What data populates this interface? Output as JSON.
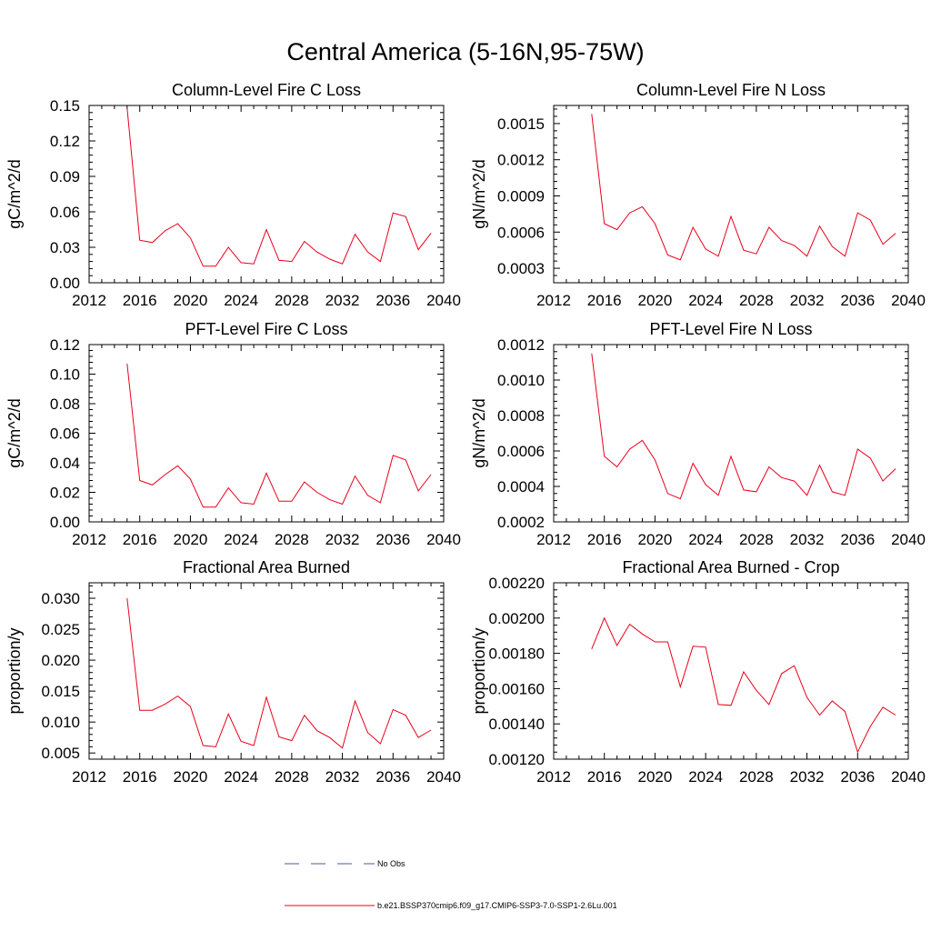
{
  "title": "Central America (5-16N,95-75W)",
  "legend": [
    {
      "label": "No Obs",
      "color": "#4a5aa0",
      "style": "dashed"
    },
    {
      "label": "b.e21.BSSP370cmip6.f09_g17.CMIP6-SSP3-7.0-SSP1-2.6Lu.001",
      "color": "#e8001c",
      "style": "solid"
    }
  ],
  "chart_data": [
    {
      "type": "line",
      "title": "Column-Level Fire C Loss",
      "ylabel": "gC/m^2/d",
      "xlim": [
        2012,
        2040
      ],
      "ylim": [
        0,
        0.15
      ],
      "xticks": [
        2012,
        2016,
        2020,
        2024,
        2028,
        2032,
        2036,
        2040
      ],
      "xtick_labels": [
        "2012",
        "2016",
        "2020",
        "2024",
        "2028",
        "2032",
        "2036",
        "2040"
      ],
      "yticks": [
        0,
        0.03,
        0.06,
        0.09,
        0.12,
        0.15
      ],
      "ytick_labels": [
        "0.00",
        "0.03",
        "0.06",
        "0.09",
        "0.12",
        "0.15"
      ],
      "x": [
        2015,
        2016,
        2017,
        2018,
        2019,
        2020,
        2021,
        2022,
        2023,
        2024,
        2025,
        2026,
        2027,
        2028,
        2029,
        2030,
        2031,
        2032,
        2033,
        2034,
        2035,
        2036,
        2037,
        2038,
        2039
      ],
      "series": [
        {
          "values": [
            0.148,
            0.036,
            0.034,
            0.044,
            0.05,
            0.038,
            0.014,
            0.014,
            0.03,
            0.017,
            0.016,
            0.045,
            0.019,
            0.018,
            0.035,
            0.026,
            0.02,
            0.016,
            0.041,
            0.026,
            0.018,
            0.059,
            0.056,
            0.028,
            0.042
          ],
          "color": "#e8001c"
        }
      ]
    },
    {
      "type": "line",
      "title": "Column-Level Fire N Loss",
      "ylabel": "gN/m^2/d",
      "xlim": [
        2012,
        2040
      ],
      "ylim": [
        0.00018,
        0.00165
      ],
      "xticks": [
        2012,
        2016,
        2020,
        2024,
        2028,
        2032,
        2036,
        2040
      ],
      "xtick_labels": [
        "2012",
        "2016",
        "2020",
        "2024",
        "2028",
        "2032",
        "2036",
        "2040"
      ],
      "yticks": [
        0.0003,
        0.0006,
        0.0009,
        0.0012,
        0.0015
      ],
      "ytick_labels": [
        "0.0003",
        "0.0006",
        "0.0009",
        "0.0012",
        "0.0015"
      ],
      "x": [
        2015,
        2016,
        2017,
        2018,
        2019,
        2020,
        2021,
        2022,
        2023,
        2024,
        2025,
        2026,
        2027,
        2028,
        2029,
        2030,
        2031,
        2032,
        2033,
        2034,
        2035,
        2036,
        2037,
        2038,
        2039
      ],
      "series": [
        {
          "values": [
            0.00158,
            0.00067,
            0.00062,
            0.00076,
            0.00081,
            0.00067,
            0.00041,
            0.00037,
            0.00064,
            0.00046,
            0.0004,
            0.00073,
            0.00045,
            0.00042,
            0.00064,
            0.00053,
            0.00049,
            0.0004,
            0.00065,
            0.00048,
            0.0004,
            0.00076,
            0.0007,
            0.0005,
            0.00059
          ],
          "color": "#e8001c"
        }
      ]
    },
    {
      "type": "line",
      "title": "PFT-Level Fire C Loss",
      "ylabel": "gC/m^2/d",
      "xlim": [
        2012,
        2040
      ],
      "ylim": [
        0,
        0.12
      ],
      "xticks": [
        2012,
        2016,
        2020,
        2024,
        2028,
        2032,
        2036,
        2040
      ],
      "xtick_labels": [
        "2012",
        "2016",
        "2020",
        "2024",
        "2028",
        "2032",
        "2036",
        "2040"
      ],
      "yticks": [
        0,
        0.02,
        0.04,
        0.06,
        0.08,
        0.1,
        0.12
      ],
      "ytick_labels": [
        "0.00",
        "0.02",
        "0.04",
        "0.06",
        "0.08",
        "0.10",
        "0.12"
      ],
      "x": [
        2015,
        2016,
        2017,
        2018,
        2019,
        2020,
        2021,
        2022,
        2023,
        2024,
        2025,
        2026,
        2027,
        2028,
        2029,
        2030,
        2031,
        2032,
        2033,
        2034,
        2035,
        2036,
        2037,
        2038,
        2039
      ],
      "series": [
        {
          "values": [
            0.107,
            0.028,
            0.025,
            0.032,
            0.038,
            0.029,
            0.01,
            0.01,
            0.023,
            0.013,
            0.012,
            0.033,
            0.014,
            0.014,
            0.027,
            0.02,
            0.015,
            0.012,
            0.031,
            0.018,
            0.013,
            0.045,
            0.042,
            0.021,
            0.032
          ],
          "color": "#e8001c"
        }
      ]
    },
    {
      "type": "line",
      "title": "PFT-Level Fire N Loss",
      "ylabel": "gN/m^2/d",
      "xlim": [
        2012,
        2040
      ],
      "ylim": [
        0.0002,
        0.0012
      ],
      "xticks": [
        2012,
        2016,
        2020,
        2024,
        2028,
        2032,
        2036,
        2040
      ],
      "xtick_labels": [
        "2012",
        "2016",
        "2020",
        "2024",
        "2028",
        "2032",
        "2036",
        "2040"
      ],
      "yticks": [
        0.0002,
        0.0004,
        0.0006,
        0.0008,
        0.001,
        0.0012
      ],
      "ytick_labels": [
        "0.0002",
        "0.0004",
        "0.0006",
        "0.0008",
        "0.0010",
        "0.0012"
      ],
      "x": [
        2015,
        2016,
        2017,
        2018,
        2019,
        2020,
        2021,
        2022,
        2023,
        2024,
        2025,
        2026,
        2027,
        2028,
        2029,
        2030,
        2031,
        2032,
        2033,
        2034,
        2035,
        2036,
        2037,
        2038,
        2039
      ],
      "series": [
        {
          "values": [
            0.00115,
            0.00057,
            0.00051,
            0.00061,
            0.00066,
            0.00055,
            0.00036,
            0.00033,
            0.00053,
            0.00041,
            0.00035,
            0.00057,
            0.00038,
            0.00037,
            0.00051,
            0.00045,
            0.00043,
            0.00035,
            0.00052,
            0.00037,
            0.00035,
            0.00061,
            0.00056,
            0.00043,
            0.0005
          ],
          "color": "#e8001c"
        }
      ]
    },
    {
      "type": "line",
      "title": "Fractional Area Burned",
      "ylabel": "proportion/y",
      "xlim": [
        2012,
        2040
      ],
      "ylim": [
        0.004,
        0.0325
      ],
      "xticks": [
        2012,
        2016,
        2020,
        2024,
        2028,
        2032,
        2036,
        2040
      ],
      "xtick_labels": [
        "2012",
        "2016",
        "2020",
        "2024",
        "2028",
        "2032",
        "2036",
        "2040"
      ],
      "yticks": [
        0.005,
        0.01,
        0.015,
        0.02,
        0.025,
        0.03
      ],
      "ytick_labels": [
        "0.005",
        "0.010",
        "0.015",
        "0.020",
        "0.025",
        "0.030"
      ],
      "x": [
        2015,
        2016,
        2017,
        2018,
        2019,
        2020,
        2021,
        2022,
        2023,
        2024,
        2025,
        2026,
        2027,
        2028,
        2029,
        2030,
        2031,
        2032,
        2033,
        2034,
        2035,
        2036,
        2037,
        2038,
        2039
      ],
      "series": [
        {
          "values": [
            0.03,
            0.0119,
            0.0119,
            0.0129,
            0.0142,
            0.0125,
            0.0062,
            0.006,
            0.0113,
            0.0069,
            0.0062,
            0.014,
            0.0076,
            0.007,
            0.0111,
            0.0086,
            0.0075,
            0.0058,
            0.0134,
            0.0083,
            0.0065,
            0.012,
            0.0111,
            0.0075,
            0.0087
          ],
          "color": "#e8001c"
        }
      ]
    },
    {
      "type": "line",
      "title": "Fractional Area Burned - Crop",
      "ylabel": "proportion/y",
      "xlim": [
        2012,
        2040
      ],
      "ylim": [
        0.0012,
        0.0022
      ],
      "xticks": [
        2012,
        2016,
        2020,
        2024,
        2028,
        2032,
        2036,
        2040
      ],
      "xtick_labels": [
        "2012",
        "2016",
        "2020",
        "2024",
        "2028",
        "2032",
        "2036",
        "2040"
      ],
      "yticks": [
        0.0012,
        0.0014,
        0.0016,
        0.0018,
        0.002,
        0.0022
      ],
      "ytick_labels": [
        "0.00120",
        "0.00140",
        "0.00160",
        "0.00180",
        "0.00200",
        "0.00220"
      ],
      "x": [
        2015,
        2016,
        2017,
        2018,
        2019,
        2020,
        2021,
        2022,
        2023,
        2024,
        2025,
        2026,
        2027,
        2028,
        2029,
        2030,
        2031,
        2032,
        2033,
        2034,
        2035,
        2036,
        2037,
        2038,
        2039
      ],
      "series": [
        {
          "values": [
            0.001825,
            0.002,
            0.001845,
            0.001965,
            0.00191,
            0.001865,
            0.001865,
            0.00161,
            0.00184,
            0.001835,
            0.00151,
            0.001505,
            0.001695,
            0.00159,
            0.00151,
            0.001685,
            0.00173,
            0.00155,
            0.00145,
            0.00153,
            0.00147,
            0.00124,
            0.001385,
            0.001495,
            0.00145
          ],
          "color": "#e8001c"
        }
      ]
    }
  ]
}
